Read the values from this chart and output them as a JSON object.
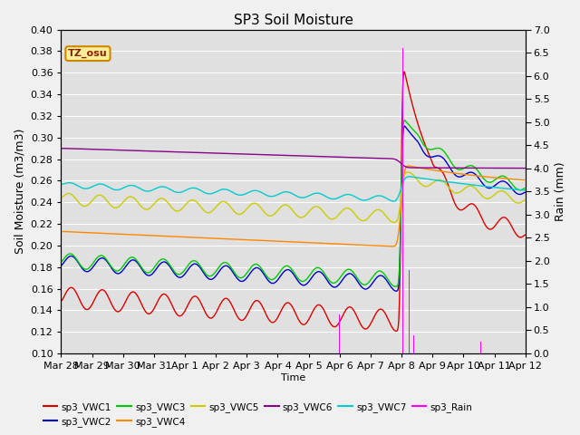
{
  "title": "SP3 Soil Moisture",
  "xlabel": "Time",
  "ylabel_left": "Soil Moisture (m3/m3)",
  "ylabel_right": "Rain (mm)",
  "ylim_left": [
    0.1,
    0.4
  ],
  "ylim_right": [
    0.0,
    7.0
  ],
  "x_tick_labels": [
    "Mar 28",
    "Mar 29",
    "Mar 30",
    "Mar 31",
    "Apr 1",
    "Apr 2",
    "Apr 3",
    "Apr 4",
    "Apr 5",
    "Apr 6",
    "Apr 7",
    "Apr 8",
    "Apr 9",
    "Apr 10",
    "Apr 11",
    "Apr 12"
  ],
  "background_color": "#e0e0e0",
  "grid_color": "#ffffff",
  "fig_facecolor": "#f0f0f0",
  "series_colors": {
    "sp3_VWC1": "#dd0000",
    "sp3_VWC2": "#0000cc",
    "sp3_VWC3": "#00cc00",
    "sp3_VWC4": "#ff8800",
    "sp3_VWC5": "#cccc00",
    "sp3_VWC6": "#880088",
    "sp3_VWC7": "#00cccc",
    "sp3_Rain": "#ff00ff"
  },
  "tz_osu_box_color": "#ffee99",
  "tz_osu_border_color": "#cc8800",
  "tz_osu_text_color": "#882200",
  "rain_events": [
    {
      "day": 9.0,
      "amount": 0.85
    },
    {
      "day": 11.05,
      "amount": 6.6
    },
    {
      "day": 11.25,
      "amount": 1.8
    },
    {
      "day": 11.38,
      "amount": 0.4
    },
    {
      "day": 13.55,
      "amount": 0.25
    }
  ]
}
